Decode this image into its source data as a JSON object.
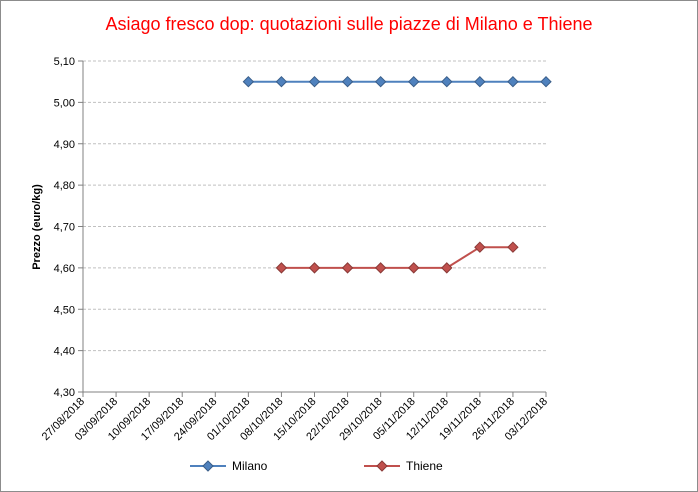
{
  "chart_data": {
    "type": "line",
    "title": "Asiago fresco dop: quotazioni sulle piazze di Milano e Thiene",
    "xlabel": "",
    "ylabel": "Prezzo (euro/kg)",
    "ylim": [
      4.3,
      5.1
    ],
    "ytick_step": 0.1,
    "yticks": [
      "4,30",
      "4,40",
      "4,50",
      "4,60",
      "4,70",
      "4,80",
      "4,90",
      "5,00",
      "5,10"
    ],
    "grid": true,
    "legend_position": "bottom",
    "categories": [
      "27/08/2018",
      "03/09/2018",
      "10/09/2018",
      "17/09/2018",
      "24/09/2018",
      "01/10/2018",
      "08/10/2018",
      "15/10/2018",
      "22/10/2018",
      "29/10/2018",
      "05/11/2018",
      "12/11/2018",
      "19/11/2018",
      "26/11/2018",
      "03/12/2018"
    ],
    "series": [
      {
        "name": "Milano",
        "color": "#4f81bd",
        "values": [
          null,
          null,
          null,
          null,
          null,
          5.05,
          5.05,
          5.05,
          5.05,
          5.05,
          5.05,
          5.05,
          5.05,
          5.05,
          5.05
        ]
      },
      {
        "name": "Thiene",
        "color": "#c0504d",
        "values": [
          null,
          null,
          null,
          null,
          null,
          null,
          4.6,
          4.6,
          4.6,
          4.6,
          4.6,
          4.6,
          4.65,
          4.65,
          null
        ]
      }
    ]
  }
}
